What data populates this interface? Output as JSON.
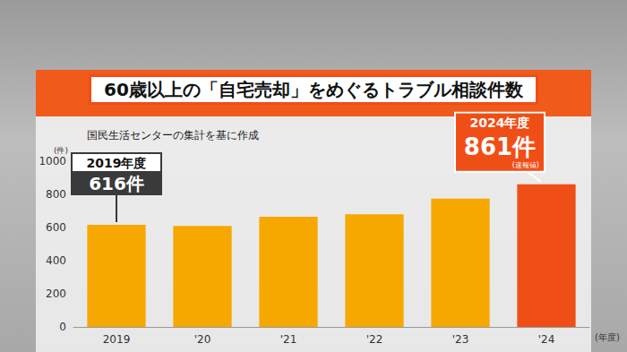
{
  "chart_data": {
    "type": "bar",
    "title": "60歳以上の「自宅売却」をめぐるトラブル相談件数",
    "subtitle": "国民生活センターの集計を基に作成",
    "y_label": "(件)",
    "x_label": "(年度)",
    "categories": [
      "2019",
      "'20",
      "'21",
      "'22",
      "'23",
      "'24"
    ],
    "values": [
      616,
      610,
      665,
      680,
      775,
      861
    ],
    "colors": [
      "#f7a800",
      "#f7a800",
      "#f7a800",
      "#f7a800",
      "#f7a800",
      "#f04e17"
    ],
    "ylim": [
      0,
      1000
    ],
    "yticks": [
      0,
      200,
      400,
      600,
      800,
      1000
    ],
    "grid": false,
    "data_labels": false,
    "annotations": [
      {
        "category": "2019",
        "lines": [
          "2019年度",
          "616件"
        ]
      },
      {
        "category": "'24",
        "lines": [
          "2024年度",
          "861件",
          "(速報値)"
        ]
      }
    ]
  }
}
